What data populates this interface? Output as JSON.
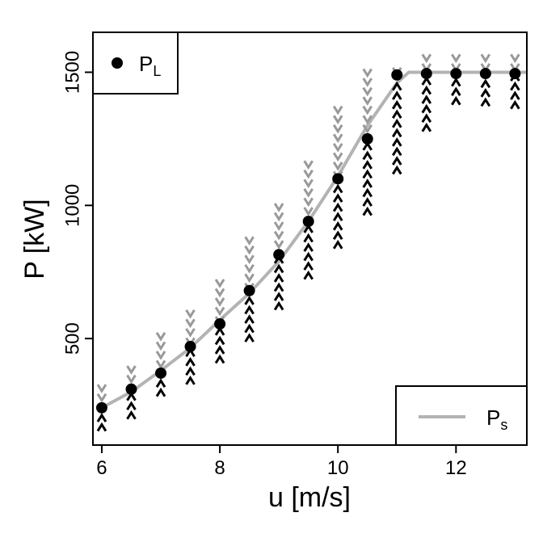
{
  "chart_data": {
    "type": "scatter",
    "xlabel": "u [m/s]",
    "ylabel": "P [kW]",
    "xlim": [
      5.85,
      13.2
    ],
    "ylim": [
      100,
      1650
    ],
    "x_ticks": [
      6,
      8,
      10,
      12
    ],
    "y_ticks": [
      500,
      1000,
      1500
    ],
    "grid": false,
    "colors": {
      "points": "#000000",
      "curve": "#b3b3b3",
      "up_arrows": "#000000",
      "down_arrows": "#999999"
    },
    "series": [
      {
        "legend": "P_L",
        "kind": "points",
        "x": [
          6,
          6.5,
          7,
          7.5,
          8,
          8.5,
          9,
          9.5,
          10,
          10.5,
          11,
          11.5,
          12,
          12.5,
          13
        ],
        "y": [
          240,
          310,
          370,
          470,
          555,
          680,
          815,
          940,
          1100,
          1250,
          1490,
          1495,
          1495,
          1495,
          1495
        ],
        "up_min": [
          165,
          210,
          295,
          340,
          420,
          500,
          620,
          735,
          850,
          975,
          1130,
          1290,
          1390,
          1385,
          1375
        ],
        "down_max": [
          315,
          385,
          510,
          595,
          710,
          870,
          995,
          1155,
          1360,
          1500,
          1505,
          1555,
          1555,
          1555,
          1555
        ]
      },
      {
        "legend": "P_s",
        "kind": "line",
        "x": [
          6,
          6.5,
          7,
          7.5,
          8,
          8.5,
          9,
          9.5,
          10,
          10.5,
          11,
          11.2,
          11.5,
          12,
          12.5,
          13,
          13.2
        ],
        "y": [
          240,
          300,
          380,
          465,
          570,
          670,
          790,
          940,
          1110,
          1300,
          1460,
          1500,
          1500,
          1500,
          1500,
          1500,
          1500
        ]
      }
    ],
    "legend": {
      "top_left": {
        "main": "P",
        "sub": "L"
      },
      "bottom_right": {
        "main": "P",
        "sub": "s"
      }
    }
  }
}
